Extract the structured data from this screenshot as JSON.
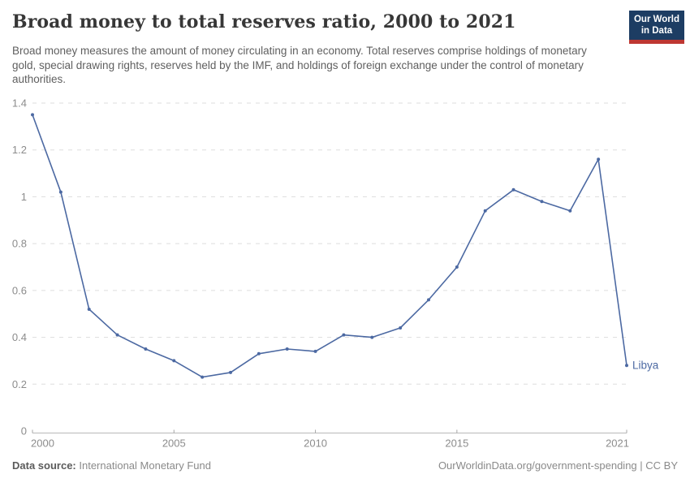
{
  "header": {
    "title": "Broad money to total reserves ratio, 2000 to 2021",
    "subtitle": "Broad money measures the amount of money circulating in an economy. Total reserves comprise holdings of monetary gold, special drawing rights, reserves held by the IMF, and holdings of foreign exchange under the control of monetary authorities.",
    "logo": {
      "line1": "Our World",
      "line2": "in Data",
      "bg_color": "#1d3d63",
      "bar_color": "#be3732"
    }
  },
  "chart_data": {
    "type": "line",
    "title": "Broad money to total reserves ratio, 2000 to 2021",
    "xlabel": "",
    "ylabel": "",
    "x": [
      2000,
      2001,
      2002,
      2003,
      2004,
      2005,
      2006,
      2007,
      2008,
      2009,
      2010,
      2011,
      2012,
      2013,
      2014,
      2015,
      2016,
      2017,
      2018,
      2019,
      2020,
      2021
    ],
    "series": [
      {
        "name": "Libya",
        "color": "#4c69a2",
        "values": [
          1.35,
          1.02,
          0.52,
          0.41,
          0.35,
          0.3,
          0.23,
          0.25,
          0.33,
          0.35,
          0.34,
          0.41,
          0.4,
          0.44,
          0.56,
          0.7,
          0.94,
          1.03,
          0.98,
          0.94,
          1.16,
          0.28
        ]
      }
    ],
    "ylim": [
      0,
      1.4
    ],
    "xlim": [
      2000,
      2021
    ],
    "y_ticks": [
      0,
      0.2,
      0.4,
      0.6,
      0.8,
      1,
      1.2,
      1.4
    ],
    "x_ticks": [
      2000,
      2005,
      2010,
      2015,
      2021
    ],
    "grid": "horizontal-dashed",
    "legend_position": "end-of-line-label",
    "entity_label": "Libya"
  },
  "footer": {
    "source_label": "Data source:",
    "source_value": "International Monetary Fund",
    "credit": "OurWorldinData.org/government-spending | CC BY"
  }
}
